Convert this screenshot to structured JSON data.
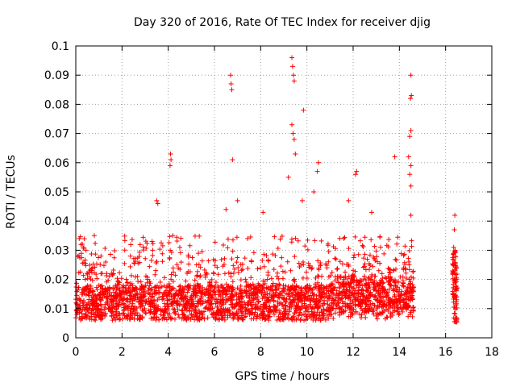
{
  "chart_data": {
    "type": "scatter",
    "title": "Day 320 of 2016, Rate Of TEC Index for receiver djig",
    "xlabel": "GPS time / hours",
    "ylabel": "ROTI / TECUs",
    "xlim": [
      0,
      18
    ],
    "ylim": [
      0,
      0.1
    ],
    "xticks": [
      "0",
      "2",
      "4",
      "6",
      "8",
      "10",
      "12",
      "14",
      "16",
      "18"
    ],
    "yticks": [
      "0",
      "0.01",
      "0.02",
      "0.03",
      "0.04",
      "0.05",
      "0.06",
      "0.07",
      "0.08",
      "0.09",
      "0.1"
    ],
    "xtick_values": [
      0,
      2,
      4,
      6,
      8,
      10,
      12,
      14,
      16,
      18
    ],
    "ytick_values": [
      0,
      0.01,
      0.02,
      0.03,
      0.04,
      0.05,
      0.06,
      0.07,
      0.08,
      0.09,
      0.1
    ],
    "grid": true,
    "marker": "+",
    "color": "#ff0000",
    "series": [
      {
        "name": "ROTI",
        "description": "dense band of points between 0.005 and 0.02 from 0 to 14.6 h and 16.3 to 16.5 h, with scattered outliers",
        "outliers": [
          {
            "x": 6.7,
            "y": 0.09
          },
          {
            "x": 6.72,
            "y": 0.087
          },
          {
            "x": 6.75,
            "y": 0.085
          },
          {
            "x": 6.78,
            "y": 0.061
          },
          {
            "x": 9.35,
            "y": 0.096
          },
          {
            "x": 9.38,
            "y": 0.093
          },
          {
            "x": 9.42,
            "y": 0.09
          },
          {
            "x": 9.45,
            "y": 0.088
          },
          {
            "x": 9.35,
            "y": 0.073
          },
          {
            "x": 9.4,
            "y": 0.07
          },
          {
            "x": 9.45,
            "y": 0.068
          },
          {
            "x": 9.5,
            "y": 0.063
          },
          {
            "x": 9.85,
            "y": 0.078
          },
          {
            "x": 4.1,
            "y": 0.063
          },
          {
            "x": 4.12,
            "y": 0.061
          },
          {
            "x": 4.08,
            "y": 0.059
          },
          {
            "x": 3.5,
            "y": 0.047
          },
          {
            "x": 3.55,
            "y": 0.046
          },
          {
            "x": 14.5,
            "y": 0.09
          },
          {
            "x": 14.52,
            "y": 0.083
          },
          {
            "x": 14.48,
            "y": 0.082
          },
          {
            "x": 14.5,
            "y": 0.071
          },
          {
            "x": 14.45,
            "y": 0.069
          },
          {
            "x": 14.4,
            "y": 0.062
          },
          {
            "x": 14.5,
            "y": 0.059
          },
          {
            "x": 14.45,
            "y": 0.056
          },
          {
            "x": 13.8,
            "y": 0.062
          },
          {
            "x": 10.5,
            "y": 0.06
          },
          {
            "x": 10.45,
            "y": 0.057
          },
          {
            "x": 12.15,
            "y": 0.057
          },
          {
            "x": 12.1,
            "y": 0.056
          },
          {
            "x": 16.4,
            "y": 0.042
          },
          {
            "x": 16.38,
            "y": 0.037
          },
          {
            "x": 16.35,
            "y": 0.031
          },
          {
            "x": 6.5,
            "y": 0.044
          },
          {
            "x": 8.1,
            "y": 0.043
          },
          {
            "x": 11.8,
            "y": 0.047
          },
          {
            "x": 12.8,
            "y": 0.043
          },
          {
            "x": 14.5,
            "y": 0.052
          },
          {
            "x": 14.5,
            "y": 0.042
          },
          {
            "x": 0.8,
            "y": 0.035
          },
          {
            "x": 0.15,
            "y": 0.034
          },
          {
            "x": 4.5,
            "y": 0.031
          },
          {
            "x": 4.2,
            "y": 0.035
          },
          {
            "x": 7.0,
            "y": 0.047
          },
          {
            "x": 9.2,
            "y": 0.055
          },
          {
            "x": 9.8,
            "y": 0.047
          },
          {
            "x": 10.3,
            "y": 0.05
          }
        ]
      }
    ]
  }
}
